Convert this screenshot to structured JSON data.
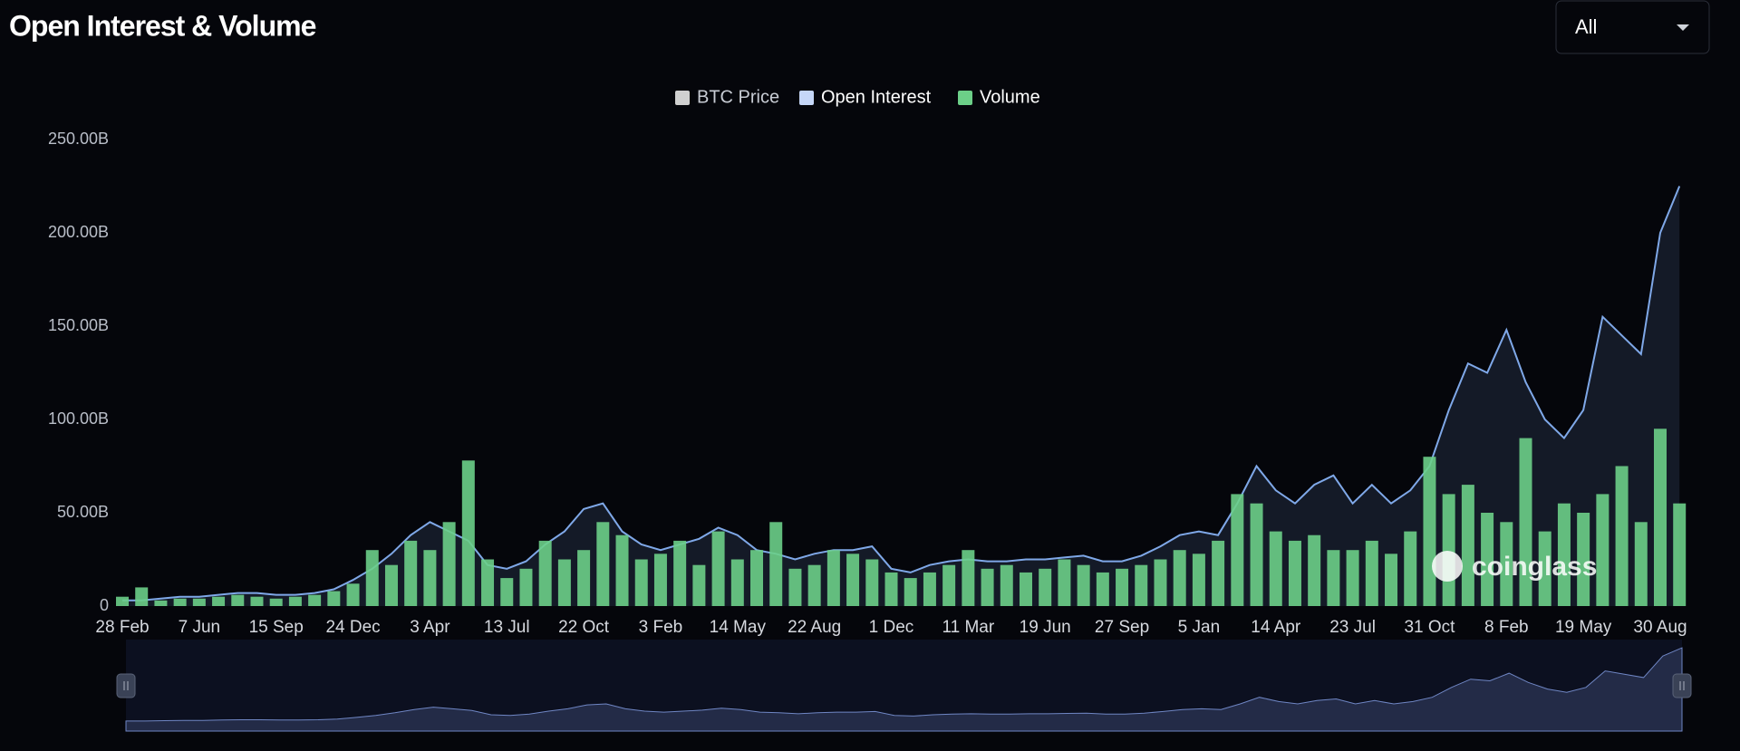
{
  "chart_data": {
    "type": "bar-line",
    "title": "Open Interest & Volume",
    "range_selector": "All",
    "watermark": "coinglass",
    "categories": [
      "28 Feb",
      null,
      null,
      null,
      "7 Jun",
      null,
      null,
      null,
      "15 Sep",
      null,
      null,
      null,
      "24 Dec",
      null,
      null,
      null,
      "3 Apr",
      null,
      null,
      null,
      "13 Jul",
      null,
      null,
      null,
      "22 Oct",
      null,
      null,
      null,
      "3 Feb",
      null,
      null,
      null,
      "14 May",
      null,
      null,
      null,
      "22 Aug",
      null,
      null,
      null,
      "1 Dec",
      null,
      null,
      null,
      "11 Mar",
      null,
      null,
      null,
      "19 Jun",
      null,
      null,
      null,
      "27 Sep",
      null,
      null,
      null,
      "5 Jan",
      null,
      null,
      null,
      "14 Apr",
      null,
      null,
      null,
      "23 Jul",
      null,
      null,
      null,
      "31 Oct",
      null,
      null,
      null,
      "8 Feb",
      null,
      null,
      null,
      "19 May",
      null,
      null,
      null,
      "30 Aug",
      null
    ],
    "series": [
      {
        "name": "BTC Price",
        "color": "#d0d0d0",
        "visible": false,
        "kind": "line",
        "values": [
          null,
          null,
          null,
          null,
          null,
          null,
          null,
          null,
          null,
          null,
          null,
          null,
          null,
          null,
          null,
          null,
          null,
          null,
          null,
          null,
          null,
          null,
          null,
          null,
          null,
          null,
          null,
          null,
          null,
          null,
          null,
          null,
          null,
          null,
          null,
          null,
          null,
          null,
          null,
          null,
          null,
          null,
          null,
          null,
          null,
          null,
          null,
          null,
          null,
          null,
          null,
          null,
          null,
          null,
          null,
          null,
          null,
          null,
          null,
          null,
          null,
          null,
          null,
          null,
          null,
          null,
          null,
          null,
          null,
          null,
          null,
          null,
          null,
          null,
          null,
          null,
          null,
          null,
          null,
          null,
          null,
          null
        ]
      },
      {
        "name": "Open Interest",
        "color": "#c5d6f7",
        "line_color": "#7fa8e8",
        "visible": true,
        "kind": "area",
        "values": [
          3,
          3,
          4,
          5,
          5,
          6,
          7,
          7,
          6,
          6,
          7,
          9,
          14,
          20,
          28,
          38,
          45,
          40,
          35,
          22,
          20,
          24,
          33,
          40,
          52,
          55,
          40,
          33,
          30,
          33,
          36,
          42,
          38,
          30,
          28,
          25,
          28,
          30,
          30,
          32,
          20,
          18,
          22,
          24,
          25,
          24,
          24,
          25,
          25,
          26,
          27,
          24,
          24,
          27,
          32,
          38,
          40,
          38,
          55,
          75,
          62,
          55,
          65,
          70,
          55,
          65,
          55,
          62,
          75,
          105,
          130,
          125,
          148,
          120,
          100,
          90,
          105,
          155,
          145,
          135,
          200,
          225
        ]
      },
      {
        "name": "Volume",
        "color": "#6ccf88",
        "visible": true,
        "kind": "bar",
        "values": [
          5,
          10,
          3,
          4,
          4,
          5,
          6,
          5,
          4,
          5,
          6,
          8,
          12,
          30,
          22,
          35,
          30,
          45,
          78,
          25,
          15,
          20,
          35,
          25,
          30,
          45,
          38,
          25,
          28,
          35,
          22,
          40,
          25,
          30,
          45,
          20,
          22,
          30,
          28,
          25,
          18,
          15,
          18,
          22,
          30,
          20,
          22,
          18,
          20,
          25,
          22,
          18,
          20,
          22,
          25,
          30,
          28,
          35,
          60,
          55,
          40,
          35,
          38,
          30,
          30,
          35,
          28,
          40,
          80,
          60,
          65,
          50,
          45,
          90,
          40,
          55,
          50,
          60,
          75,
          45,
          95,
          55
        ]
      }
    ],
    "ylim": [
      0,
      250
    ],
    "yticks": [
      0,
      {
        "value": 50,
        "label": "50.00B"
      },
      {
        "value": 100,
        "label": "100.00B"
      },
      {
        "value": 150,
        "label": "150.00B"
      },
      {
        "value": 200,
        "label": "200.00B"
      },
      {
        "value": 250,
        "label": "250.00B"
      }
    ],
    "grid": false
  }
}
